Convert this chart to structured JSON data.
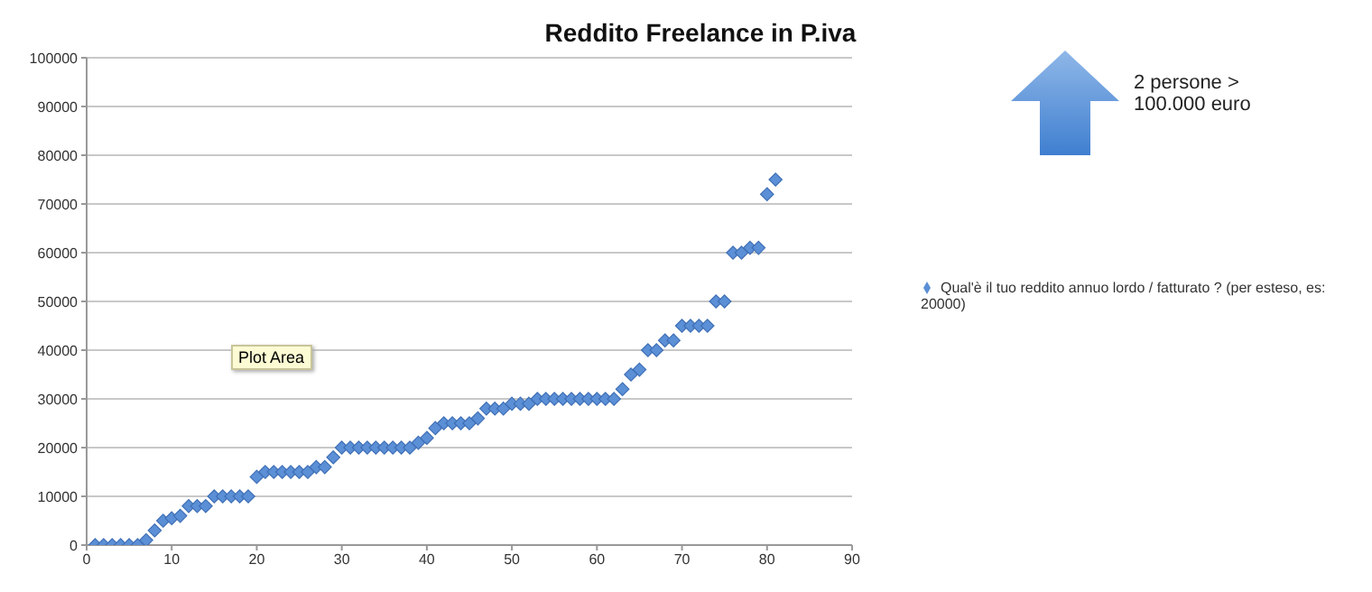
{
  "chart_data": {
    "type": "scatter",
    "title": "Reddito Freelance in P.iva",
    "x": [
      1,
      2,
      3,
      4,
      5,
      6,
      7,
      8,
      9,
      10,
      11,
      12,
      13,
      14,
      15,
      16,
      17,
      18,
      19,
      20,
      21,
      22,
      23,
      24,
      25,
      26,
      27,
      28,
      29,
      30,
      31,
      32,
      33,
      34,
      35,
      36,
      37,
      38,
      39,
      40,
      41,
      42,
      43,
      44,
      45,
      46,
      47,
      48,
      49,
      50,
      51,
      52,
      53,
      54,
      55,
      56,
      57,
      58,
      59,
      60,
      61,
      62,
      63,
      64,
      65,
      66,
      67,
      68,
      69,
      70,
      71,
      72,
      73,
      74,
      75,
      76,
      77,
      78,
      79,
      80,
      81
    ],
    "series": [
      {
        "name": "Qual'è il tuo reddito annuo lordo / fatturato ? (per esteso, es: 20000)",
        "color": "#5b8fd6",
        "values": [
          0,
          0,
          0,
          0,
          0,
          0,
          1000,
          3000,
          5000,
          5500,
          6000,
          8000,
          8000,
          8000,
          10000,
          10000,
          10000,
          10000,
          10000,
          14000,
          15000,
          15000,
          15000,
          15000,
          15000,
          15000,
          16000,
          16000,
          18000,
          20000,
          20000,
          20000,
          20000,
          20000,
          20000,
          20000,
          20000,
          20000,
          21000,
          22000,
          24000,
          25000,
          25000,
          25000,
          25000,
          26000,
          28000,
          28000,
          28000,
          29000,
          29000,
          29000,
          30000,
          30000,
          30000,
          30000,
          30000,
          30000,
          30000,
          30000,
          30000,
          30000,
          32000,
          35000,
          36000,
          40000,
          40000,
          42000,
          42000,
          45000,
          45000,
          45000,
          45000,
          50000,
          50000,
          60000,
          60000,
          61000,
          61000,
          72000,
          75000
        ]
      }
    ],
    "xlim": [
      0,
      90
    ],
    "xticks": [
      0,
      10,
      20,
      30,
      40,
      50,
      60,
      70,
      80,
      90
    ],
    "ylim": [
      0,
      100000
    ],
    "yticks": [
      0,
      10000,
      20000,
      30000,
      40000,
      50000,
      60000,
      70000,
      80000,
      90000,
      100000
    ],
    "grid": "y",
    "legend": "right",
    "marker": "diamond",
    "annotations": [
      "Plot Area",
      "2 persone > 100.000 euro"
    ]
  }
}
